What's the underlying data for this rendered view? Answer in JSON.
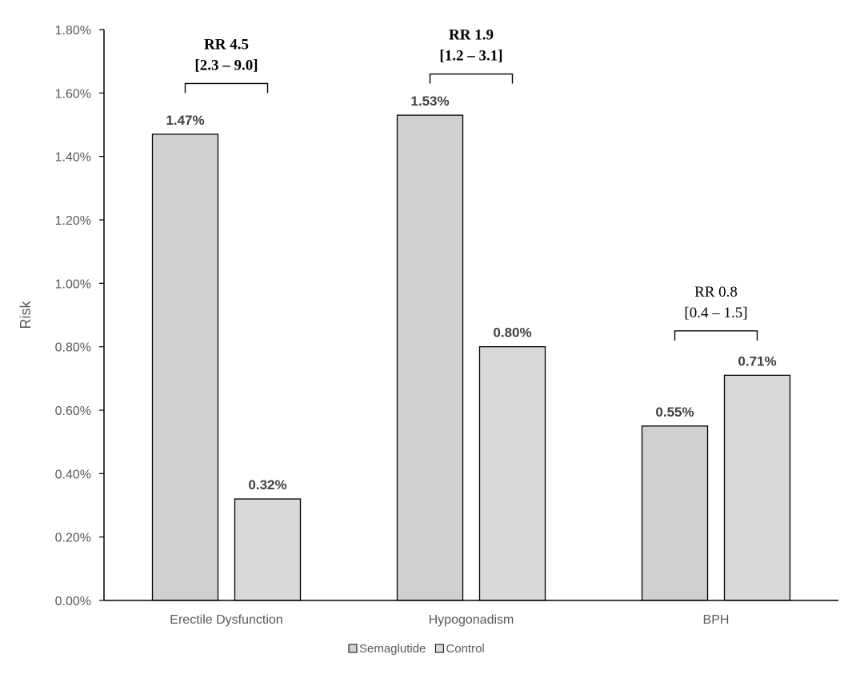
{
  "chart_data": {
    "type": "bar",
    "categories": [
      "Erectile Dysfunction",
      "Hypogonadism",
      "BPH"
    ],
    "series": [
      {
        "name": "Semaglutide",
        "values": [
          1.47,
          1.53,
          0.55
        ],
        "color": "#d0d0d0",
        "labels": [
          "1.47%",
          "1.53%",
          "0.55%"
        ]
      },
      {
        "name": "Control",
        "values": [
          0.32,
          0.8,
          0.71
        ],
        "color": "#d9d9d9",
        "labels": [
          "0.32%",
          "0.80%",
          "0.71%"
        ]
      }
    ],
    "ylabel": "Risk",
    "xlabel": "",
    "title": "",
    "ylim": [
      0,
      1.8
    ],
    "yticks": [
      {
        "value": 0.0,
        "label": "0.00%"
      },
      {
        "value": 0.2,
        "label": "0.20%"
      },
      {
        "value": 0.4,
        "label": "0.40%"
      },
      {
        "value": 0.6,
        "label": "0.60%"
      },
      {
        "value": 0.8,
        "label": "0.80%"
      },
      {
        "value": 1.0,
        "label": "1.00%"
      },
      {
        "value": 1.2,
        "label": "1.20%"
      },
      {
        "value": 1.4,
        "label": "1.40%"
      },
      {
        "value": 1.6,
        "label": "1.60%"
      },
      {
        "value": 1.8,
        "label": "1.80%"
      }
    ],
    "grid": false,
    "legend": "bottom",
    "annotations": [
      {
        "category": "Erectile Dysfunction",
        "line1": "RR 4.5",
        "line2": "[2.3 – 9.0]",
        "bold": true,
        "bracket_level": 1.63
      },
      {
        "category": "Hypogonadism",
        "line1": "RR 1.9",
        "line2": "[1.2 – 3.1]",
        "bold": true,
        "bracket_level": 1.66
      },
      {
        "category": "BPH",
        "line1": "RR 0.8",
        "line2": "[0.4 – 1.5]",
        "bold": false,
        "bracket_level": 0.85
      }
    ]
  }
}
